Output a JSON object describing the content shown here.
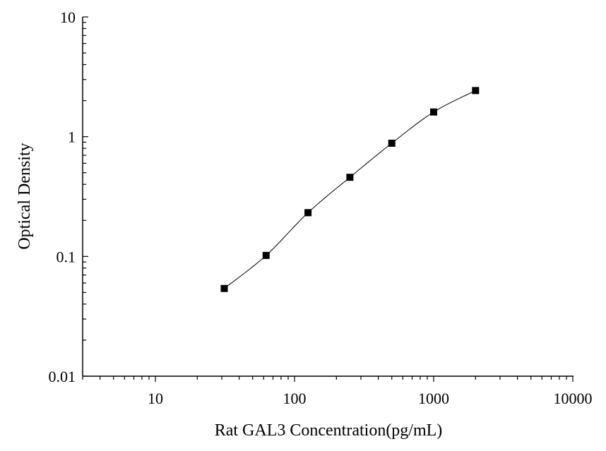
{
  "chart_data": {
    "type": "scatter",
    "title": "",
    "xlabel": "Rat GAL3 Concentration(pg/mL)",
    "ylabel": "Optical Density",
    "xscale": "log",
    "yscale": "log",
    "xlim": [
      3,
      10000
    ],
    "ylim": [
      0.01,
      10
    ],
    "x_ticks": [
      "10",
      "100",
      "1000",
      "10000"
    ],
    "y_ticks": [
      "0.01",
      "0.1",
      "1",
      "10"
    ],
    "grid": false,
    "legend": "none",
    "series": [
      {
        "marker": "square",
        "color": "#000000",
        "line": "fitted curve",
        "x": [
          31.25,
          62.5,
          125,
          250,
          500,
          1000,
          2000
        ],
        "y": [
          0.054,
          0.102,
          0.232,
          0.458,
          0.882,
          1.608,
          2.428
        ]
      }
    ]
  }
}
